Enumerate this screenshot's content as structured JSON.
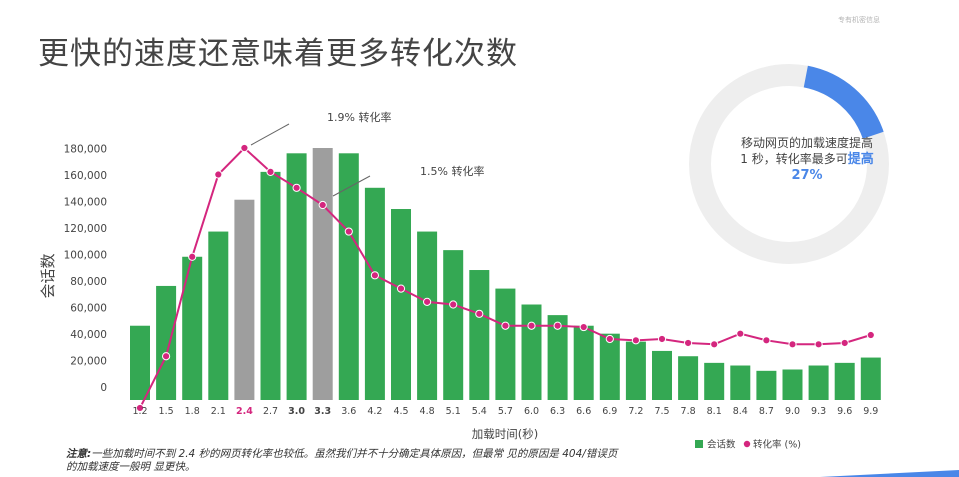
{
  "page": {
    "title": "更快的速度还意味着更多转化次数",
    "confidential": "专有机密信息",
    "footnote_label": "注意:",
    "footnote_text": "一些加载时间不到 2.4 秒的网页转化率也较低。虽然我们并不十分确定具体原因，但最常 见的原因是 404/错误页的加载速度一般明 显更快。"
  },
  "donut": {
    "text_line": "移动网页的加载速度提高 1 秒，转化率最多可",
    "highlight": "提高",
    "percent": "27%",
    "value_percent": 27,
    "colors": {
      "fill": "#4a87e8",
      "track": "#eeeeee"
    }
  },
  "chart_data": {
    "type": "bar",
    "xlabel": "加载时间(秒)",
    "ylabel": "会话数",
    "ylim": [
      0,
      190000
    ],
    "y_ticks": [
      "0",
      "20,000",
      "40,000",
      "60,000",
      "80,000",
      "100,000",
      "120,000",
      "140,000",
      "160,000",
      "180,000"
    ],
    "categories": [
      "1.2",
      "1.5",
      "1.8",
      "2.1",
      "2.4",
      "2.7",
      "3.0",
      "3.3",
      "3.6",
      "4.2",
      "4.5",
      "4.8",
      "5.1",
      "5.4",
      "5.7",
      "6.0",
      "6.3",
      "6.6",
      "6.9",
      "7.2",
      "7.5",
      "7.8",
      "8.1",
      "8.4",
      "8.7",
      "9.0",
      "9.3",
      "9.6",
      "9.9"
    ],
    "highlighted_categories": [
      "2.4",
      "3.0",
      "3.3"
    ],
    "series": [
      {
        "name": "会话数",
        "type": "bar",
        "color": "#34a853",
        "values": [
          56000,
          86000,
          108000,
          127000,
          151000,
          172000,
          186000,
          190000,
          186000,
          160000,
          144000,
          127000,
          113000,
          98000,
          84000,
          72000,
          64000,
          56000,
          50000,
          44000,
          37000,
          33000,
          28000,
          26000,
          22000,
          23000,
          26000,
          28000,
          32000
        ],
        "gray_highlight_categories": [
          "2.4",
          "3.3"
        ],
        "gray_color": "#9e9e9e"
      },
      {
        "name": "转化率 (%)",
        "type": "line",
        "color": "#d4267e",
        "values": [
          -6000,
          33000,
          108000,
          170000,
          190000,
          172000,
          160000,
          147000,
          127000,
          94000,
          84000,
          74000,
          72000,
          65000,
          56000,
          56000,
          56000,
          55000,
          46000,
          45000,
          46000,
          43000,
          42000,
          50000,
          45000,
          42000,
          42000,
          43000,
          49000
        ]
      }
    ],
    "annotations": [
      {
        "text": "1.9% 转化率",
        "category": "2.4"
      },
      {
        "text": "1.5% 转化率",
        "category": "3.3"
      }
    ],
    "legend_position": "bottom-right"
  }
}
